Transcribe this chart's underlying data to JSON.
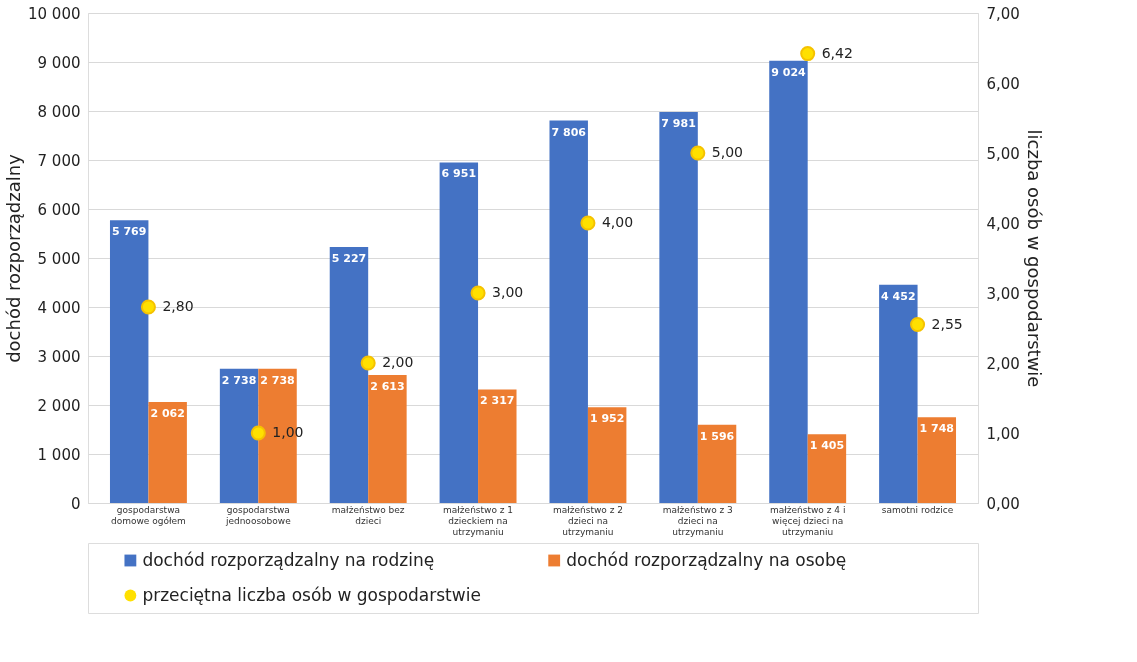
{
  "chart_data": {
    "type": "bar",
    "ylabel": "dochód rozporządzalny",
    "y2label": "liczba osób w gospodarstwie",
    "categories": [
      "gospodarstwa domowe ogółem",
      "gospodarstwa jednoosobowe",
      "małżeństwo bez dzieci",
      "małżeństwo z 1 dzieckiem na utrzymaniu",
      "małżeństwo z 2 dzieci na utrzymaniu",
      "małżeństwo z 3 dzieci na utrzymaniu",
      "małżeństwo z 4 i więcej dzieci na utrzymaniu",
      "samotni rodzice"
    ],
    "series": [
      {
        "name": "dochód rozporządzalny na rodzinę",
        "type": "bar",
        "color": "#4472c4",
        "values": [
          5769,
          2738,
          5227,
          6951,
          7806,
          7981,
          9024,
          4452
        ],
        "value_labels": [
          "5 769",
          "2 738",
          "5 227",
          "6 951",
          "7 806",
          "7 981",
          "9 024",
          "4 452"
        ]
      },
      {
        "name": "dochód rozporządzalny na osobę",
        "type": "bar",
        "color": "#ed7d31",
        "values": [
          2062,
          2738,
          2613,
          2317,
          1952,
          1596,
          1405,
          1748
        ],
        "value_labels": [
          "2 062",
          "2 738",
          "2 613",
          "2 317",
          "1 952",
          "1 596",
          "1 405",
          "1 748"
        ]
      },
      {
        "name": "przeciętna liczba osób w gospodarstwie",
        "type": "scatter",
        "axis": "y2",
        "marker": "circle",
        "color": "#ffe000",
        "values": [
          2.8,
          1.0,
          2.0,
          3.0,
          4.0,
          5.0,
          6.42,
          2.55
        ],
        "value_labels": [
          "2,80",
          "1,00",
          "2,00",
          "3,00",
          "4,00",
          "5,00",
          "6,42",
          "2,55"
        ]
      }
    ],
    "ylim": [
      0,
      10000
    ],
    "yticks": [
      {
        "value": 0,
        "label": "0"
      },
      {
        "value": 1000,
        "label": "1 000"
      },
      {
        "value": 2000,
        "label": "2 000"
      },
      {
        "value": 3000,
        "label": "3 000"
      },
      {
        "value": 4000,
        "label": "4 000"
      },
      {
        "value": 5000,
        "label": "5 000"
      },
      {
        "value": 6000,
        "label": "6 000"
      },
      {
        "value": 7000,
        "label": "7 000"
      },
      {
        "value": 8000,
        "label": "8 000"
      },
      {
        "value": 9000,
        "label": "9 000"
      },
      {
        "value": 10000,
        "label": "10 000"
      }
    ],
    "y2lim": [
      0,
      7
    ],
    "y2ticks": [
      {
        "value": 0,
        "label": "0,00"
      },
      {
        "value": 1,
        "label": "1,00"
      },
      {
        "value": 2,
        "label": "2,00"
      },
      {
        "value": 3,
        "label": "3,00"
      },
      {
        "value": 4,
        "label": "4,00"
      },
      {
        "value": 5,
        "label": "5,00"
      },
      {
        "value": 6,
        "label": "6,00"
      },
      {
        "value": 7,
        "label": "7,00"
      }
    ],
    "grid": "y",
    "legend": "bottom"
  }
}
